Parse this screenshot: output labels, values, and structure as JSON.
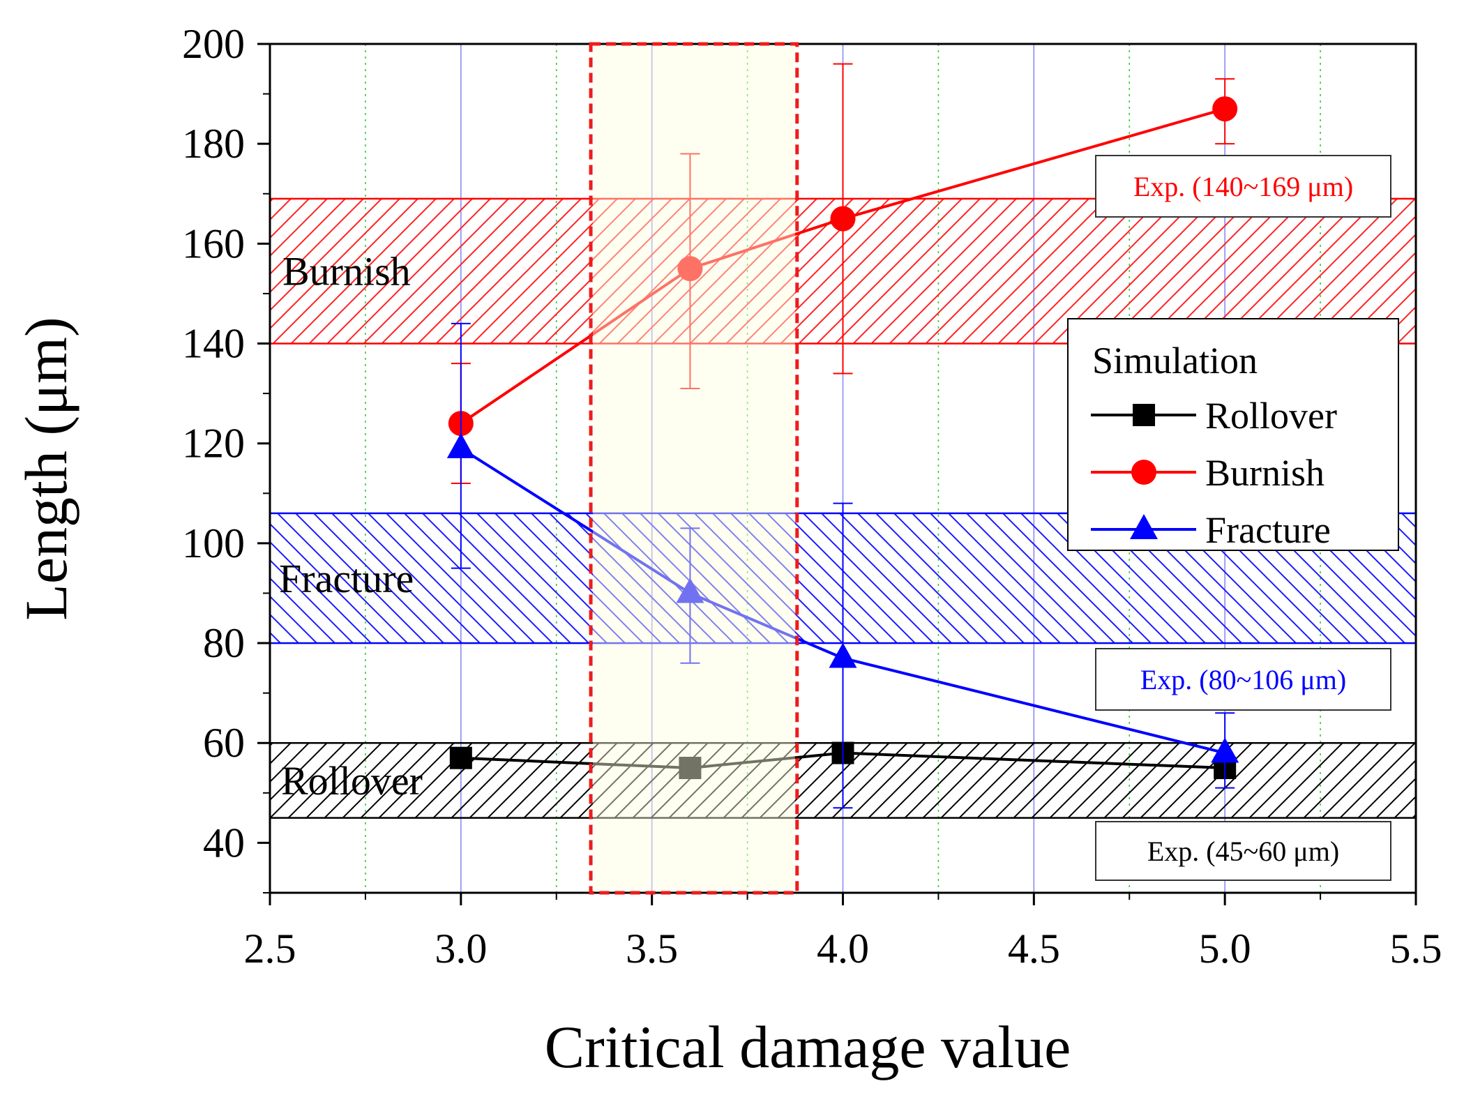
{
  "chart_data": {
    "type": "line",
    "title": "",
    "xlabel": "Critical damage value",
    "ylabel": "Length (μm)",
    "xlim": [
      2.5,
      5.5
    ],
    "ylim": [
      30,
      200
    ],
    "xticks": [
      "2.5",
      "3.0",
      "3.5",
      "4.0",
      "4.5",
      "5.0",
      "5.5"
    ],
    "yticks": [
      "40",
      "60",
      "80",
      "100",
      "120",
      "140",
      "160",
      "180",
      "200"
    ],
    "x": [
      3.0,
      3.6,
      4.0,
      5.0
    ],
    "series": [
      {
        "name": "Rollover",
        "color": "#000000",
        "marker": "square",
        "values": [
          57,
          55,
          58,
          55
        ],
        "err_low": [
          57,
          55,
          58,
          52
        ],
        "err_high": [
          57,
          55,
          58,
          52
        ]
      },
      {
        "name": "Burnish",
        "color": "#ff0000",
        "marker": "circle",
        "values": [
          124,
          155,
          165,
          187
        ],
        "err_low": [
          112,
          131,
          134,
          180
        ],
        "err_high": [
          136,
          178,
          196,
          193
        ]
      },
      {
        "name": "Fracture",
        "color": "#0000ff",
        "marker": "triangle",
        "values": [
          119,
          90,
          77,
          58
        ],
        "err_low": [
          95,
          76,
          47,
          51
        ],
        "err_high": [
          144,
          103,
          108,
          66
        ]
      }
    ],
    "bands": [
      {
        "name": "Burnish",
        "label": "Burnish",
        "ymin": 140,
        "ymax": 169,
        "color": "#ff0000",
        "exp_label": "Exp. (140~169 μm)",
        "hatch": "forward"
      },
      {
        "name": "Fracture",
        "label": "Fracture",
        "ymin": 80,
        "ymax": 106,
        "color": "#0000ff",
        "exp_label": "Exp. (80~106 μm)",
        "hatch": "back"
      },
      {
        "name": "Rollover",
        "label": "Rollover",
        "ymin": 45,
        "ymax": 60,
        "color": "#000000",
        "exp_label": "Exp. (45~60 μm)",
        "hatch": "forward"
      }
    ],
    "highlight_range": {
      "xmin": 3.34,
      "xmax": 3.88,
      "fill": "#fdfde0",
      "edge": "#ee1c1c"
    },
    "legend": {
      "title": "Simulation",
      "position": "right",
      "entries": [
        "Rollover",
        "Burnish",
        "Fracture"
      ]
    },
    "grid": {
      "major_x": "blue",
      "minor_x": "green-dotted"
    }
  }
}
